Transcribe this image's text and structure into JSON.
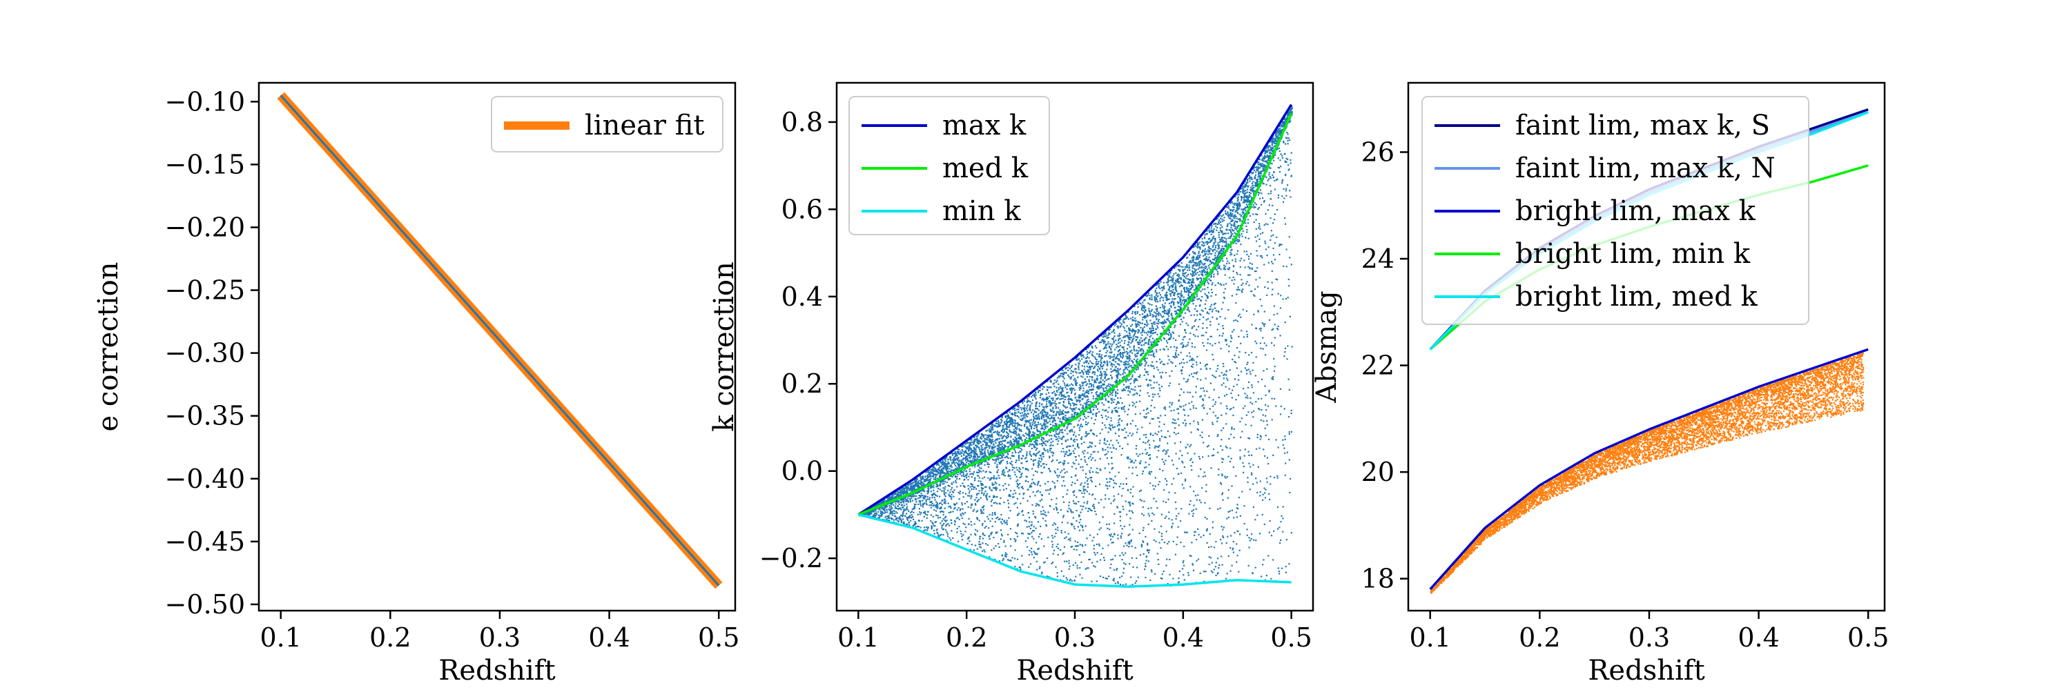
{
  "chart_data": [
    {
      "type": "line",
      "xlabel": "Redshift",
      "ylabel": "e correction",
      "xlim": [
        0.08,
        0.515
      ],
      "ylim": [
        -0.505,
        -0.085
      ],
      "xticks": [
        0.1,
        0.2,
        0.3,
        0.4,
        0.5
      ],
      "xtick_labels": [
        "0.1",
        "0.2",
        "0.3",
        "0.4",
        "0.5"
      ],
      "yticks": [
        -0.1,
        -0.15,
        -0.2,
        -0.25,
        -0.3,
        -0.35,
        -0.4,
        -0.45,
        -0.5
      ],
      "ytick_labels": [
        "−0.10",
        "−0.15",
        "−0.20",
        "−0.25",
        "−0.30",
        "−0.35",
        "−0.40",
        "−0.45",
        "−0.50"
      ],
      "grid": false,
      "legend_position": "top-right",
      "series": [
        {
          "name": "",
          "kind": "line",
          "color": "#1f77b4",
          "x": [
            0.1,
            0.5
          ],
          "y": [
            -0.095,
            -0.485
          ]
        },
        {
          "name": "linear fit",
          "kind": "line",
          "color": "#ff7f0e",
          "x": [
            0.1,
            0.5
          ],
          "y": [
            -0.095,
            -0.485
          ]
        }
      ]
    },
    {
      "type": "scatter",
      "xlabel": "Redshift",
      "ylabel": "k correction",
      "xlim": [
        0.08,
        0.52
      ],
      "ylim": [
        -0.32,
        0.89
      ],
      "xticks": [
        0.1,
        0.2,
        0.3,
        0.4,
        0.5
      ],
      "xtick_labels": [
        "0.1",
        "0.2",
        "0.3",
        "0.4",
        "0.5"
      ],
      "yticks": [
        -0.2,
        0.0,
        0.2,
        0.4,
        0.6,
        0.8
      ],
      "ytick_labels": [
        "−0.2",
        "0.0",
        "0.2",
        "0.4",
        "0.6",
        "0.8"
      ],
      "grid": false,
      "legend_position": "top-left",
      "scatter_color": "#1f77b4",
      "series": [
        {
          "name": "max k",
          "kind": "line",
          "color": "#0000cd",
          "x": [
            0.1,
            0.15,
            0.2,
            0.25,
            0.3,
            0.35,
            0.4,
            0.45,
            0.5
          ],
          "y": [
            -0.1,
            -0.02,
            0.07,
            0.16,
            0.26,
            0.37,
            0.49,
            0.64,
            0.84
          ]
        },
        {
          "name": "med k",
          "kind": "line",
          "color": "#00ee00",
          "x": [
            0.1,
            0.15,
            0.2,
            0.25,
            0.3,
            0.35,
            0.4,
            0.45,
            0.5
          ],
          "y": [
            -0.1,
            -0.05,
            0.01,
            0.06,
            0.12,
            0.22,
            0.37,
            0.54,
            0.82
          ]
        },
        {
          "name": "min k",
          "kind": "line",
          "color": "#00e5ee",
          "x": [
            0.1,
            0.15,
            0.2,
            0.25,
            0.3,
            0.35,
            0.4,
            0.45,
            0.5
          ],
          "y": [
            -0.1,
            -0.13,
            -0.18,
            -0.23,
            -0.26,
            -0.265,
            -0.26,
            -0.25,
            -0.255
          ]
        }
      ]
    },
    {
      "type": "scatter",
      "xlabel": "Redshift",
      "ylabel": "Absmag",
      "xlim": [
        0.08,
        0.515
      ],
      "ylim": [
        17.4,
        27.3
      ],
      "xticks": [
        0.1,
        0.2,
        0.3,
        0.4,
        0.5
      ],
      "xtick_labels": [
        "0.1",
        "0.2",
        "0.3",
        "0.4",
        "0.5"
      ],
      "yticks": [
        18,
        20,
        22,
        24,
        26
      ],
      "ytick_labels": [
        "18",
        "20",
        "22",
        "24",
        "26"
      ],
      "grid": false,
      "legend_position": "top-left",
      "scatter_color": "#ff7f0e",
      "series": [
        {
          "name": "faint lim, max k, S",
          "kind": "line",
          "color": "#00008b",
          "x": [
            0.1,
            0.15,
            0.2,
            0.25,
            0.3,
            0.35,
            0.4,
            0.45,
            0.5
          ],
          "y": [
            22.3,
            23.4,
            24.2,
            24.8,
            25.3,
            25.7,
            26.1,
            26.45,
            26.8
          ]
        },
        {
          "name": "faint lim, max k, N",
          "kind": "line",
          "color": "#6495ed",
          "x": [
            0.1,
            0.15,
            0.2,
            0.25,
            0.3,
            0.35,
            0.4,
            0.45,
            0.5
          ],
          "y": [
            22.3,
            23.35,
            24.15,
            24.75,
            25.25,
            25.65,
            26.05,
            26.4,
            26.75
          ]
        },
        {
          "name": "bright lim, max k",
          "kind": "line",
          "color": "#0000cd",
          "x": [
            0.1,
            0.15,
            0.2,
            0.25,
            0.3,
            0.35,
            0.4,
            0.45,
            0.5
          ],
          "y": [
            17.8,
            18.95,
            19.75,
            20.35,
            20.8,
            21.2,
            21.6,
            21.95,
            22.3
          ]
        },
        {
          "name": "bright lim, min k",
          "kind": "line",
          "color": "#00ee00",
          "x": [
            0.1,
            0.15,
            0.2,
            0.25,
            0.3,
            0.35,
            0.4,
            0.45,
            0.5
          ],
          "y": [
            22.3,
            23.2,
            23.8,
            24.25,
            24.6,
            24.9,
            25.2,
            25.45,
            25.75
          ]
        },
        {
          "name": "bright lim, med k",
          "kind": "line",
          "color": "#00e5ee",
          "x": [
            0.1,
            0.15,
            0.2,
            0.25,
            0.3,
            0.35,
            0.4,
            0.45,
            0.5
          ],
          "y": [
            22.3,
            23.35,
            24.1,
            24.7,
            25.2,
            25.6,
            26.0,
            26.35,
            26.75
          ]
        }
      ]
    }
  ]
}
